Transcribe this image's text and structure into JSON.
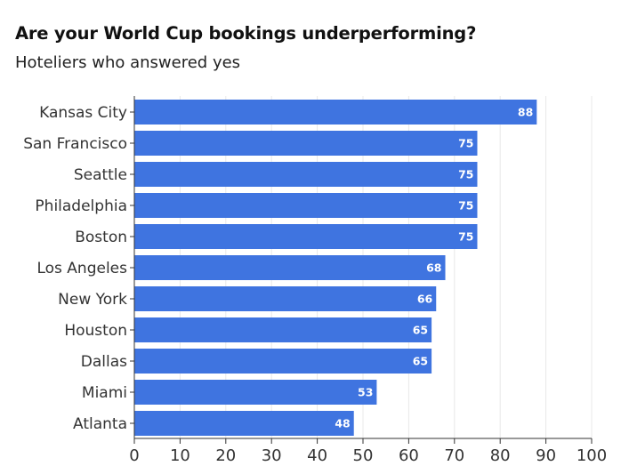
{
  "header": {
    "title": "Are your World Cup bookings underperforming?",
    "subtitle": "Hoteliers who answered yes"
  },
  "colors": {
    "bar": "#3f74e0",
    "grid": "#e8e8e8",
    "axis": "#333333",
    "value_text": "#ffffff"
  },
  "chart_data": {
    "type": "bar",
    "orientation": "horizontal",
    "title": "Are your World Cup bookings underperforming?",
    "subtitle": "Hoteliers who answered yes",
    "categories": [
      "Kansas City",
      "San Francisco",
      "Seattle",
      "Philadelphia",
      "Boston",
      "Los Angeles",
      "New York",
      "Houston",
      "Dallas",
      "Miami",
      "Atlanta"
    ],
    "values": [
      88,
      75,
      75,
      75,
      75,
      68,
      66,
      65,
      65,
      53,
      48
    ],
    "xlim": [
      0,
      100
    ],
    "xticks": [
      0,
      10,
      20,
      30,
      40,
      50,
      60,
      70,
      80,
      90,
      100
    ],
    "xlabel": "",
    "ylabel": "",
    "grid": "vertical",
    "legend": "none",
    "data_labels": true
  }
}
